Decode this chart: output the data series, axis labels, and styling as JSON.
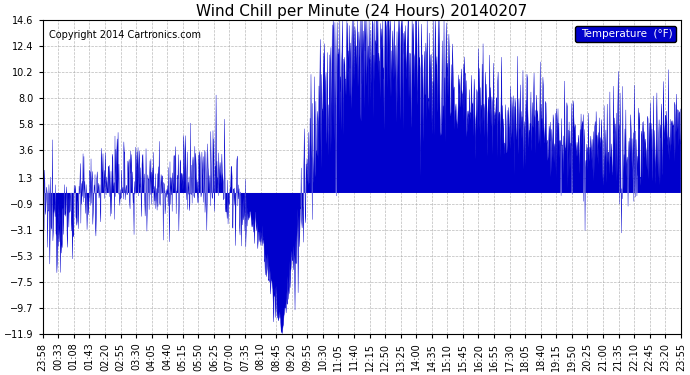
{
  "title": "Wind Chill per Minute (24 Hours) 20140207",
  "copyright_text": "Copyright 2014 Cartronics.com",
  "legend_label": "Temperature  (°F)",
  "legend_bg": "#0000cc",
  "legend_text_color": "#ffffff",
  "background_color": "#ffffff",
  "plot_bg_color": "#ffffff",
  "line_color": "#0000cc",
  "fill_color": "#0000cc",
  "grid_color": "#aaaaaa",
  "title_fontsize": 11,
  "tick_fontsize": 7,
  "copyright_fontsize": 7,
  "ylim": [
    -11.9,
    14.6
  ],
  "yticks": [
    14.6,
    12.4,
    10.2,
    8.0,
    5.8,
    3.6,
    1.3,
    -0.9,
    -3.1,
    -5.3,
    -7.5,
    -9.7,
    -11.9
  ],
  "xtick_labels": [
    "23:58",
    "00:33",
    "01:08",
    "01:43",
    "02:20",
    "02:55",
    "03:30",
    "04:05",
    "04:40",
    "05:15",
    "05:50",
    "06:25",
    "07:00",
    "07:35",
    "08:10",
    "08:45",
    "09:20",
    "09:55",
    "10:30",
    "11:05",
    "11:40",
    "12:15",
    "12:50",
    "13:25",
    "14:00",
    "14:35",
    "15:10",
    "15:45",
    "16:20",
    "16:55",
    "17:30",
    "18:05",
    "18:40",
    "19:15",
    "19:50",
    "20:25",
    "21:00",
    "21:35",
    "22:10",
    "22:45",
    "23:20",
    "23:55"
  ],
  "num_points": 1440,
  "base_segments": [
    {
      "t0": 0.0,
      "t1": 0.035,
      "v0": -2.0,
      "v1": -2.0
    },
    {
      "t0": 0.035,
      "t1": 0.095,
      "v0": -2.0,
      "v1": 1.0
    },
    {
      "t0": 0.095,
      "t1": 0.155,
      "v0": 1.0,
      "v1": 1.3
    },
    {
      "t0": 0.155,
      "t1": 0.195,
      "v0": 1.3,
      "v1": 0.5
    },
    {
      "t0": 0.195,
      "t1": 0.23,
      "v0": 0.5,
      "v1": 1.2
    },
    {
      "t0": 0.23,
      "t1": 0.27,
      "v0": 1.2,
      "v1": 1.3
    },
    {
      "t0": 0.27,
      "t1": 0.295,
      "v0": 1.3,
      "v1": 0.0
    },
    {
      "t0": 0.295,
      "t1": 0.32,
      "v0": 0.0,
      "v1": -1.5
    },
    {
      "t0": 0.32,
      "t1": 0.34,
      "v0": -1.5,
      "v1": -3.5
    },
    {
      "t0": 0.34,
      "t1": 0.375,
      "v0": -3.5,
      "v1": -11.5
    },
    {
      "t0": 0.375,
      "t1": 0.395,
      "v0": -11.5,
      "v1": -5.0
    },
    {
      "t0": 0.395,
      "t1": 0.42,
      "v0": -5.0,
      "v1": 3.5
    },
    {
      "t0": 0.42,
      "t1": 0.445,
      "v0": 3.5,
      "v1": 8.5
    },
    {
      "t0": 0.445,
      "t1": 0.48,
      "v0": 8.5,
      "v1": 11.5
    },
    {
      "t0": 0.48,
      "t1": 0.53,
      "v0": 11.5,
      "v1": 12.5
    },
    {
      "t0": 0.53,
      "t1": 0.58,
      "v0": 12.5,
      "v1": 11.0
    },
    {
      "t0": 0.58,
      "t1": 0.615,
      "v0": 11.0,
      "v1": 9.5
    },
    {
      "t0": 0.615,
      "t1": 0.64,
      "v0": 9.5,
      "v1": 8.5
    },
    {
      "t0": 0.64,
      "t1": 0.67,
      "v0": 8.5,
      "v1": 8.0
    },
    {
      "t0": 0.67,
      "t1": 0.7,
      "v0": 8.0,
      "v1": 7.0
    },
    {
      "t0": 0.7,
      "t1": 0.73,
      "v0": 7.0,
      "v1": 6.5
    },
    {
      "t0": 0.73,
      "t1": 0.76,
      "v0": 6.5,
      "v1": 6.0
    },
    {
      "t0": 0.76,
      "t1": 0.79,
      "v0": 6.0,
      "v1": 5.5
    },
    {
      "t0": 0.79,
      "t1": 0.82,
      "v0": 5.5,
      "v1": 5.0
    },
    {
      "t0": 0.82,
      "t1": 0.845,
      "v0": 5.0,
      "v1": 4.5
    },
    {
      "t0": 0.845,
      "t1": 0.87,
      "v0": 4.5,
      "v1": 3.5
    },
    {
      "t0": 0.87,
      "t1": 0.895,
      "v0": 3.5,
      "v1": 3.0
    },
    {
      "t0": 0.895,
      "t1": 0.925,
      "v0": 3.0,
      "v1": 3.5
    },
    {
      "t0": 0.925,
      "t1": 0.96,
      "v0": 3.5,
      "v1": 4.5
    },
    {
      "t0": 0.96,
      "t1": 1.0,
      "v0": 4.5,
      "v1": 5.8
    }
  ],
  "noise_segments": [
    {
      "t0": 0.0,
      "t1": 0.035,
      "scale": 2.0
    },
    {
      "t0": 0.035,
      "t1": 0.32,
      "scale": 1.8
    },
    {
      "t0": 0.32,
      "t1": 0.395,
      "scale": 0.8
    },
    {
      "t0": 0.395,
      "t1": 0.64,
      "scale": 3.5
    },
    {
      "t0": 0.64,
      "t1": 1.0,
      "scale": 2.2
    }
  ]
}
